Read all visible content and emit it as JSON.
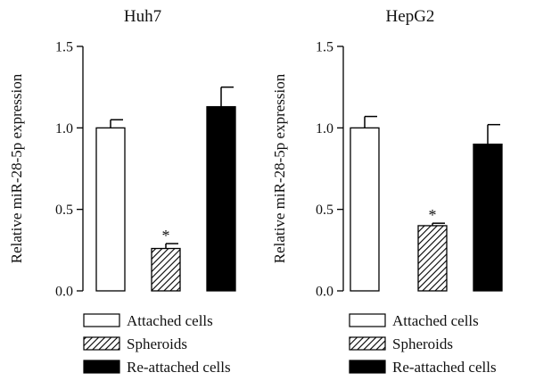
{
  "chart_data": [
    {
      "type": "bar",
      "title": "Huh7",
      "ylabel": "Relative miR-28-5p expression",
      "xlabel": "",
      "ylim": [
        0,
        1.5
      ],
      "yticks": [
        "0.0",
        "0.5",
        "1.0",
        "1.5"
      ],
      "categories": [
        "Attached cells",
        "Spheroids",
        "Re-attached cells"
      ],
      "values": [
        1.0,
        0.26,
        1.13
      ],
      "errors": [
        0.05,
        0.03,
        0.12
      ],
      "significance": [
        "",
        "*",
        ""
      ],
      "grid": false
    },
    {
      "type": "bar",
      "title": "HepG2",
      "ylabel": "Relative miR-28-5p expression",
      "xlabel": "",
      "ylim": [
        0,
        1.5
      ],
      "yticks": [
        "0.0",
        "0.5",
        "1.0",
        "1.5"
      ],
      "categories": [
        "Attached cells",
        "Spheroids",
        "Re-attached cells"
      ],
      "values": [
        1.0,
        0.4,
        0.9
      ],
      "errors": [
        0.07,
        0.015,
        0.12
      ],
      "significance": [
        "",
        "*",
        ""
      ],
      "grid": false
    }
  ],
  "legend": {
    "items": [
      {
        "label": "Attached cells",
        "fill": "white"
      },
      {
        "label": "Spheroids",
        "fill": "hatched"
      },
      {
        "label": "Re-attached cells",
        "fill": "black"
      }
    ]
  },
  "colors": {
    "attached": "#ffffff",
    "spheroids": "hatched",
    "reattached": "#000000",
    "stroke": "#000000"
  }
}
